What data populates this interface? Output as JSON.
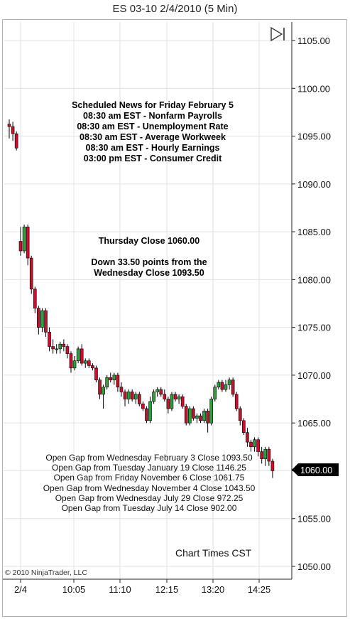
{
  "title": "ES 03-10  2/4/2010 (5 Min)",
  "news": {
    "heading": "Scheduled News for Friday February 5",
    "items": [
      "08:30 am EST - Nonfarm Payrolls",
      "08:30 am EST - Unemployment Rate",
      "08:30 am EST - Average Workweek",
      "08:30 am EST - Hourly Earnings",
      "03:00 pm EST - Consumer Credit"
    ]
  },
  "close_note": {
    "line1": "Thursday Close 1060.00",
    "line2": "Down 33.50 points from the",
    "line3": "Wednesday Close 1093.50"
  },
  "gaps": [
    "Open Gap from Wednesday February 3 Close 1093.50",
    "Open Gap from Tuesday January 19 Close 1146.25",
    "Open Gap from Friday November 6 Close 1061.75",
    "Open Gap from Wednesday November 4 Close 1043.50",
    "Open Gap from Wednesday July 29 Close 972.25",
    "Open Gap from Tuesday July 14 Close 902.00"
  ],
  "chart_times": "Chart Times CST",
  "copyright": "© 2010 NinjaTrader, LLC",
  "colors": {
    "up": "#2e9e3e",
    "down": "#c8102e",
    "marker": "#000000",
    "grid": "#e2e2e2"
  },
  "chart_data": {
    "type": "candlestick",
    "y_ticks": [
      "1105.00",
      "1100.00",
      "1095.00",
      "1090.00",
      "1085.00",
      "1080.00",
      "1075.00",
      "1070.00",
      "1065.00",
      "1060.00",
      "1055.00",
      "1050.00"
    ],
    "ylim": [
      1049.5,
      1107.5
    ],
    "x_ticks": [
      "2/4",
      "10:05",
      "11:10",
      "12:15",
      "13:20",
      "14:25"
    ],
    "last_price": "1060.00",
    "grid": true,
    "candles": [
      {
        "o": 1096.25,
        "h": 1096.75,
        "l": 1094.75,
        "c": 1096.0
      },
      {
        "o": 1096.0,
        "h": 1096.5,
        "l": 1094.5,
        "c": 1095.25
      },
      {
        "o": 1095.25,
        "h": 1095.5,
        "l": 1093.5,
        "c": 1093.75
      },
      {
        "o": 1084.0,
        "h": 1085.5,
        "l": 1082.5,
        "c": 1083.0
      },
      {
        "o": 1083.0,
        "h": 1085.75,
        "l": 1082.75,
        "c": 1085.5
      },
      {
        "o": 1085.5,
        "h": 1085.75,
        "l": 1081.5,
        "c": 1082.25
      },
      {
        "o": 1082.25,
        "h": 1082.5,
        "l": 1078.5,
        "c": 1079.0
      },
      {
        "o": 1079.0,
        "h": 1079.25,
        "l": 1076.5,
        "c": 1077.0
      },
      {
        "o": 1077.0,
        "h": 1077.25,
        "l": 1074.25,
        "c": 1075.0
      },
      {
        "o": 1075.0,
        "h": 1077.0,
        "l": 1074.5,
        "c": 1076.75
      },
      {
        "o": 1076.75,
        "h": 1077.0,
        "l": 1074.0,
        "c": 1074.5
      },
      {
        "o": 1074.5,
        "h": 1075.0,
        "l": 1072.5,
        "c": 1073.0
      },
      {
        "o": 1073.0,
        "h": 1073.75,
        "l": 1072.25,
        "c": 1072.75
      },
      {
        "o": 1072.75,
        "h": 1073.25,
        "l": 1072.25,
        "c": 1072.75
      },
      {
        "o": 1072.75,
        "h": 1073.5,
        "l": 1072.25,
        "c": 1073.25
      },
      {
        "o": 1073.25,
        "h": 1073.75,
        "l": 1072.5,
        "c": 1073.0
      },
      {
        "o": 1073.0,
        "h": 1073.25,
        "l": 1071.75,
        "c": 1072.25
      },
      {
        "o": 1072.25,
        "h": 1072.5,
        "l": 1070.25,
        "c": 1070.75
      },
      {
        "o": 1070.75,
        "h": 1072.0,
        "l": 1070.5,
        "c": 1071.5
      },
      {
        "o": 1071.5,
        "h": 1073.0,
        "l": 1071.25,
        "c": 1072.75
      },
      {
        "o": 1072.75,
        "h": 1073.25,
        "l": 1071.0,
        "c": 1071.25
      },
      {
        "o": 1071.25,
        "h": 1071.75,
        "l": 1070.75,
        "c": 1071.5
      },
      {
        "o": 1071.5,
        "h": 1071.75,
        "l": 1070.75,
        "c": 1071.0
      },
      {
        "o": 1071.0,
        "h": 1071.25,
        "l": 1070.5,
        "c": 1070.75
      },
      {
        "o": 1070.75,
        "h": 1071.0,
        "l": 1069.25,
        "c": 1069.5
      },
      {
        "o": 1069.5,
        "h": 1069.75,
        "l": 1067.5,
        "c": 1068.0
      },
      {
        "o": 1068.0,
        "h": 1069.0,
        "l": 1066.5,
        "c": 1068.75
      },
      {
        "o": 1068.75,
        "h": 1070.0,
        "l": 1068.5,
        "c": 1069.75
      },
      {
        "o": 1069.75,
        "h": 1070.25,
        "l": 1069.25,
        "c": 1069.5
      },
      {
        "o": 1069.5,
        "h": 1070.25,
        "l": 1069.0,
        "c": 1070.0
      },
      {
        "o": 1070.0,
        "h": 1070.25,
        "l": 1068.25,
        "c": 1068.75
      },
      {
        "o": 1068.75,
        "h": 1069.25,
        "l": 1067.75,
        "c": 1068.25
      },
      {
        "o": 1068.25,
        "h": 1068.5,
        "l": 1066.75,
        "c": 1067.5
      },
      {
        "o": 1067.5,
        "h": 1068.5,
        "l": 1067.0,
        "c": 1068.25
      },
      {
        "o": 1068.25,
        "h": 1068.5,
        "l": 1067.25,
        "c": 1067.5
      },
      {
        "o": 1067.5,
        "h": 1068.25,
        "l": 1067.0,
        "c": 1068.0
      },
      {
        "o": 1068.0,
        "h": 1068.25,
        "l": 1066.75,
        "c": 1067.0
      },
      {
        "o": 1067.0,
        "h": 1067.25,
        "l": 1066.25,
        "c": 1066.5
      },
      {
        "o": 1066.5,
        "h": 1066.75,
        "l": 1065.0,
        "c": 1065.25
      },
      {
        "o": 1065.25,
        "h": 1067.75,
        "l": 1065.0,
        "c": 1067.25
      },
      {
        "o": 1067.25,
        "h": 1068.5,
        "l": 1067.0,
        "c": 1068.25
      },
      {
        "o": 1068.25,
        "h": 1068.75,
        "l": 1067.75,
        "c": 1068.5
      },
      {
        "o": 1068.5,
        "h": 1068.75,
        "l": 1067.75,
        "c": 1068.0
      },
      {
        "o": 1068.0,
        "h": 1068.5,
        "l": 1067.25,
        "c": 1067.5
      },
      {
        "o": 1067.5,
        "h": 1067.75,
        "l": 1066.0,
        "c": 1066.5
      },
      {
        "o": 1066.5,
        "h": 1068.25,
        "l": 1066.25,
        "c": 1068.0
      },
      {
        "o": 1068.0,
        "h": 1068.25,
        "l": 1067.25,
        "c": 1067.5
      },
      {
        "o": 1067.5,
        "h": 1068.0,
        "l": 1067.0,
        "c": 1067.75
      },
      {
        "o": 1067.75,
        "h": 1068.0,
        "l": 1066.5,
        "c": 1066.75
      },
      {
        "o": 1066.75,
        "h": 1067.0,
        "l": 1064.75,
        "c": 1065.0
      },
      {
        "o": 1065.0,
        "h": 1066.75,
        "l": 1064.75,
        "c": 1066.5
      },
      {
        "o": 1066.5,
        "h": 1066.75,
        "l": 1065.25,
        "c": 1065.5
      },
      {
        "o": 1065.5,
        "h": 1066.0,
        "l": 1065.0,
        "c": 1065.75
      },
      {
        "o": 1065.75,
        "h": 1066.0,
        "l": 1065.0,
        "c": 1065.25
      },
      {
        "o": 1065.25,
        "h": 1066.5,
        "l": 1065.0,
        "c": 1066.25
      },
      {
        "o": 1066.25,
        "h": 1066.5,
        "l": 1064.0,
        "c": 1065.0
      },
      {
        "o": 1065.0,
        "h": 1067.75,
        "l": 1064.75,
        "c": 1067.5
      },
      {
        "o": 1067.5,
        "h": 1069.0,
        "l": 1067.25,
        "c": 1068.75
      },
      {
        "o": 1068.75,
        "h": 1069.5,
        "l": 1068.5,
        "c": 1069.25
      },
      {
        "o": 1069.25,
        "h": 1069.5,
        "l": 1068.25,
        "c": 1068.5
      },
      {
        "o": 1068.5,
        "h": 1069.5,
        "l": 1068.25,
        "c": 1069.0
      },
      {
        "o": 1069.0,
        "h": 1069.75,
        "l": 1068.5,
        "c": 1069.5
      },
      {
        "o": 1069.5,
        "h": 1069.75,
        "l": 1067.75,
        "c": 1068.0
      },
      {
        "o": 1068.0,
        "h": 1068.25,
        "l": 1066.25,
        "c": 1066.5
      },
      {
        "o": 1066.5,
        "h": 1066.75,
        "l": 1064.75,
        "c": 1065.25
      },
      {
        "o": 1065.25,
        "h": 1065.5,
        "l": 1063.75,
        "c": 1064.0
      },
      {
        "o": 1064.0,
        "h": 1064.5,
        "l": 1062.5,
        "c": 1063.0
      },
      {
        "o": 1063.0,
        "h": 1063.25,
        "l": 1062.0,
        "c": 1062.5
      },
      {
        "o": 1062.5,
        "h": 1063.5,
        "l": 1062.0,
        "c": 1063.25
      },
      {
        "o": 1063.25,
        "h": 1063.5,
        "l": 1061.5,
        "c": 1062.0
      },
      {
        "o": 1062.0,
        "h": 1062.5,
        "l": 1060.75,
        "c": 1061.25
      },
      {
        "o": 1061.25,
        "h": 1062.5,
        "l": 1060.5,
        "c": 1062.25
      },
      {
        "o": 1062.25,
        "h": 1062.5,
        "l": 1060.5,
        "c": 1061.0
      },
      {
        "o": 1061.0,
        "h": 1061.25,
        "l": 1059.25,
        "c": 1060.0
      }
    ]
  }
}
